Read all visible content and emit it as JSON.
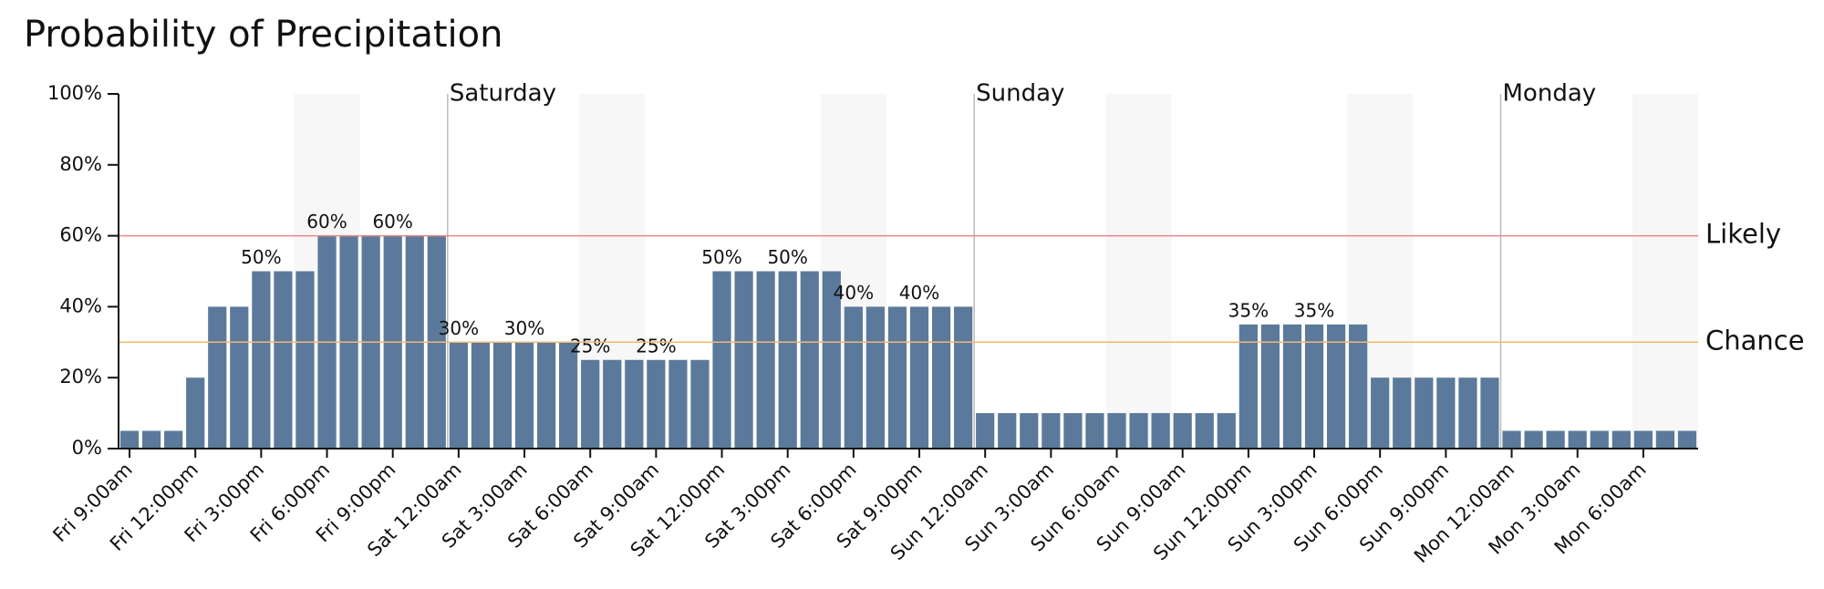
{
  "chart_data": {
    "type": "bar",
    "title": "Probability of Precipitation",
    "color": "#5b7a9b",
    "categories": [
      "Fri 9:00am",
      null,
      null,
      "Fri 12:00pm",
      null,
      null,
      "Fri 3:00pm",
      null,
      null,
      "Fri 6:00pm",
      null,
      null,
      "Fri 9:00pm",
      null,
      null,
      "Sat 12:00am",
      null,
      null,
      "Sat 3:00am",
      null,
      null,
      "Sat 6:00am",
      null,
      null,
      "Sat 9:00am",
      null,
      null,
      "Sat 12:00pm",
      null,
      null,
      "Sat 3:00pm",
      null,
      null,
      "Sat 6:00pm",
      null,
      null,
      "Sat 9:00pm",
      null,
      null,
      "Sun 12:00am",
      null,
      null,
      "Sun 3:00am",
      null,
      null,
      "Sun 6:00am",
      null,
      null,
      "Sun 9:00am",
      null,
      null,
      "Sun 12:00pm",
      null,
      null,
      "Sun 3:00pm",
      null,
      null,
      "Sun 6:00pm",
      null,
      null,
      "Sun 9:00pm",
      null,
      null,
      "Mon 12:00am",
      null,
      null,
      "Mon 3:00am",
      null,
      null,
      "Mon 6:00am",
      null,
      null
    ],
    "values": [
      5,
      5,
      5,
      20,
      40,
      40,
      50,
      50,
      50,
      60,
      60,
      60,
      60,
      60,
      60,
      30,
      30,
      30,
      30,
      30,
      30,
      25,
      25,
      25,
      25,
      25,
      25,
      50,
      50,
      50,
      50,
      50,
      50,
      40,
      40,
      40,
      40,
      40,
      40,
      10,
      10,
      10,
      10,
      10,
      10,
      10,
      10,
      10,
      10,
      10,
      10,
      35,
      35,
      35,
      35,
      35,
      35,
      20,
      20,
      20,
      20,
      20,
      20,
      5,
      5,
      5,
      5,
      5,
      5,
      5,
      5,
      5
    ],
    "value_labels": [
      null,
      null,
      null,
      null,
      null,
      null,
      "50%",
      null,
      null,
      "60%",
      null,
      null,
      "60%",
      null,
      null,
      "30%",
      null,
      null,
      "30%",
      null,
      null,
      "25%",
      null,
      null,
      "25%",
      null,
      null,
      "50%",
      null,
      null,
      "50%",
      null,
      null,
      "40%",
      null,
      null,
      "40%",
      null,
      null,
      null,
      null,
      null,
      null,
      null,
      null,
      null,
      null,
      null,
      null,
      null,
      null,
      "35%",
      null,
      null,
      "35%",
      null,
      null,
      null,
      null,
      null,
      null,
      null,
      null,
      null,
      null,
      null,
      null,
      null,
      null,
      null,
      null,
      null
    ],
    "ylim": [
      0,
      100
    ],
    "yticks": [
      {
        "value": 0,
        "label": "0%"
      },
      {
        "value": 20,
        "label": "20%"
      },
      {
        "value": 40,
        "label": "40%"
      },
      {
        "value": 60,
        "label": "60%"
      },
      {
        "value": 80,
        "label": "80%"
      },
      {
        "value": 100,
        "label": "100%"
      }
    ],
    "day_labels": [
      "Saturday",
      "Sunday",
      "Monday"
    ],
    "thresholds": [
      {
        "label": "Likely",
        "value": 60,
        "color": "#e8868a"
      },
      {
        "label": "Chance",
        "value": 30,
        "color": "#f0b870"
      }
    ]
  }
}
